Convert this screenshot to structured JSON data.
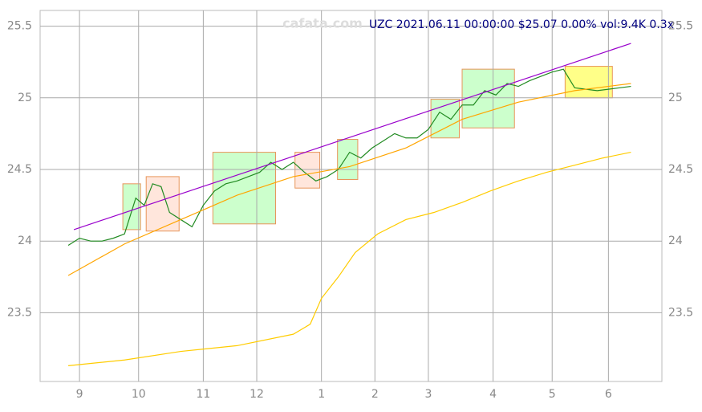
{
  "chart_data": {
    "type": "line",
    "title": "UZC 2021.06.11 00:00:00 $25.07 0.00% vol:9.4K 0.3x",
    "watermark": "cafata.com",
    "xlim": [
      0,
      221
    ],
    "ylim": [
      23.02,
      25.61
    ],
    "xticks": [
      {
        "value": 14,
        "label": "9"
      },
      {
        "value": 35,
        "label": "10"
      },
      {
        "value": 58,
        "label": "11"
      },
      {
        "value": 77,
        "label": "12"
      },
      {
        "value": 100,
        "label": "1"
      },
      {
        "value": 119,
        "label": "2"
      },
      {
        "value": 138,
        "label": "3"
      },
      {
        "value": 161,
        "label": "4"
      },
      {
        "value": 182,
        "label": "5"
      },
      {
        "value": 202,
        "label": "6"
      }
    ],
    "yticks": [
      23.5,
      24.0,
      24.5,
      25.0,
      25.5
    ],
    "grid": true,
    "zones": [
      {
        "x": [
          29.4,
          35.7
        ],
        "range": [
          24.08,
          24.4
        ],
        "color": "#ccffcc"
      },
      {
        "x": [
          37.7,
          49.4
        ],
        "range": [
          24.07,
          24.45
        ],
        "color": "#ffe6dc"
      },
      {
        "x": [
          61.4,
          83.7
        ],
        "range": [
          24.12,
          24.62
        ],
        "color": "#ccffcc"
      },
      {
        "x": [
          90.6,
          99.4
        ],
        "range": [
          24.37,
          24.62
        ],
        "color": "#ffe6dc"
      },
      {
        "x": [
          105.7,
          112.9
        ],
        "range": [
          24.43,
          24.71
        ],
        "color": "#ccffcc"
      },
      {
        "x": [
          138.9,
          149
        ],
        "range": [
          24.72,
          24.99
        ],
        "color": "#ccffcc"
      },
      {
        "x": [
          150,
          168.6
        ],
        "range": [
          24.79,
          25.2
        ],
        "color": "#ccffcc"
      },
      {
        "x": [
          186.6,
          203.4
        ],
        "range": [
          25.0,
          25.22
        ],
        "color": "#ffff88"
      }
    ],
    "series": [
      {
        "color": "#228b22",
        "x": [
          10,
          14,
          18,
          22,
          26,
          30,
          34,
          37,
          40,
          43,
          46,
          50,
          54,
          58,
          62,
          66,
          70,
          74,
          78,
          82,
          86,
          90,
          94,
          98,
          102,
          106,
          110,
          114,
          118,
          122,
          126,
          130,
          134,
          138,
          142,
          146,
          150,
          154,
          158,
          162,
          166,
          170,
          174,
          178,
          182,
          186,
          190,
          194,
          198,
          202,
          206,
          210
        ],
        "values": [
          23.97,
          24.02,
          24.0,
          24.0,
          24.02,
          24.05,
          24.3,
          24.25,
          24.4,
          24.38,
          24.2,
          24.15,
          24.1,
          24.25,
          24.35,
          24.4,
          24.42,
          24.45,
          24.48,
          24.55,
          24.5,
          24.55,
          24.48,
          24.42,
          24.45,
          24.5,
          24.62,
          24.58,
          24.65,
          24.7,
          24.75,
          24.72,
          24.72,
          24.78,
          24.9,
          24.85,
          24.95,
          24.95,
          25.05,
          25.02,
          25.1,
          25.08,
          25.12,
          25.15,
          25.18,
          25.2,
          25.07,
          25.06,
          25.05,
          25.06,
          25.07,
          25.08
        ]
      },
      {
        "color": "#ffcc00",
        "x": [
          10,
          30,
          50,
          70,
          90,
          96,
          100,
          106,
          112,
          120,
          130,
          140,
          150,
          160,
          170,
          180,
          190,
          200,
          210
        ],
        "values": [
          23.13,
          23.17,
          23.23,
          23.27,
          23.35,
          23.42,
          23.6,
          23.75,
          23.92,
          24.05,
          24.15,
          24.2,
          24.27,
          24.35,
          24.42,
          24.48,
          24.53,
          24.58,
          24.62
        ]
      },
      {
        "color": "#ffa500",
        "x": [
          10,
          30,
          50,
          70,
          90,
          110,
          130,
          150,
          170,
          190,
          210
        ],
        "values": [
          23.76,
          23.98,
          24.15,
          24.32,
          24.45,
          24.52,
          24.65,
          24.85,
          24.97,
          25.05,
          25.1
        ]
      },
      {
        "color": "#9900cc",
        "x": [
          12,
          210
        ],
        "values": [
          24.08,
          25.38
        ]
      }
    ]
  }
}
